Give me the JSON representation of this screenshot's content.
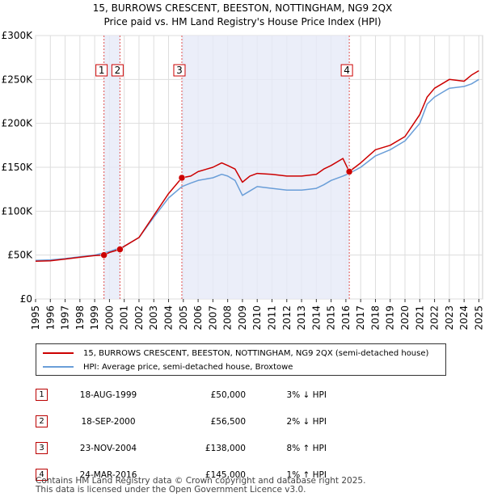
{
  "chart_data": {
    "type": "line",
    "title": "15, BURROWS CRESCENT, BEESTON, NOTTINGHAM, NG9 2QX",
    "subtitle": "Price paid vs. HM Land Registry's House Price Index (HPI)",
    "ylim": [
      0,
      300000
    ],
    "xlim": [
      1995,
      2025.25
    ],
    "y_ticks": [
      {
        "value": 0,
        "label": "£0"
      },
      {
        "value": 50000,
        "label": "£50K"
      },
      {
        "value": 100000,
        "label": "£100K"
      },
      {
        "value": 150000,
        "label": "£150K"
      },
      {
        "value": 200000,
        "label": "£200K"
      },
      {
        "value": 250000,
        "label": "£250K"
      },
      {
        "value": 300000,
        "label": "£300K"
      }
    ],
    "x_ticks": [
      "1995",
      "1996",
      "1997",
      "1998",
      "1999",
      "2000",
      "2001",
      "2002",
      "2003",
      "2004",
      "2005",
      "2006",
      "2007",
      "2008",
      "2009",
      "2010",
      "2011",
      "2012",
      "2013",
      "2014",
      "2015",
      "2016",
      "2017",
      "2018",
      "2019",
      "2020",
      "2021",
      "2022",
      "2023",
      "2024",
      "2025"
    ],
    "series": [
      {
        "name": "15, BURROWS CRESCENT, BEESTON, NOTTINGHAM, NG9 2QX (semi-detached house)",
        "color": "#cc0000",
        "points": [
          [
            1995,
            43000
          ],
          [
            1996,
            43500
          ],
          [
            1997,
            45500
          ],
          [
            1998,
            47500
          ],
          [
            1999,
            49500
          ],
          [
            1999.63,
            50000
          ],
          [
            2000,
            53000
          ],
          [
            2000.71,
            56500
          ],
          [
            2001,
            60000
          ],
          [
            2002,
            70000
          ],
          [
            2003,
            95000
          ],
          [
            2004,
            120000
          ],
          [
            2004.9,
            138000
          ],
          [
            2005.5,
            140000
          ],
          [
            2006,
            145000
          ],
          [
            2007,
            150000
          ],
          [
            2007.6,
            155000
          ],
          [
            2008,
            152000
          ],
          [
            2008.5,
            148000
          ],
          [
            2009,
            133000
          ],
          [
            2009.5,
            140000
          ],
          [
            2010,
            143000
          ],
          [
            2011,
            142000
          ],
          [
            2012,
            140000
          ],
          [
            2013,
            140000
          ],
          [
            2014,
            142000
          ],
          [
            2014.5,
            148000
          ],
          [
            2015,
            152000
          ],
          [
            2015.8,
            160000
          ],
          [
            2016.23,
            145000
          ],
          [
            2017,
            155000
          ],
          [
            2018,
            170000
          ],
          [
            2019,
            175000
          ],
          [
            2020,
            185000
          ],
          [
            2021,
            210000
          ],
          [
            2021.5,
            230000
          ],
          [
            2022,
            240000
          ],
          [
            2022.5,
            245000
          ],
          [
            2023,
            250000
          ],
          [
            2024,
            248000
          ],
          [
            2024.5,
            255000
          ],
          [
            2025,
            260000
          ]
        ]
      },
      {
        "name": "HPI: Average price, semi-detached house, Broxtowe",
        "color": "#6a9ed8",
        "points": [
          [
            1995,
            44000
          ],
          [
            1996,
            44500
          ],
          [
            1997,
            46000
          ],
          [
            1998,
            48000
          ],
          [
            1999,
            50000
          ],
          [
            2000,
            54000
          ],
          [
            2001,
            60000
          ],
          [
            2002,
            70000
          ],
          [
            2003,
            93000
          ],
          [
            2004,
            115000
          ],
          [
            2004.9,
            128000
          ],
          [
            2005.5,
            132000
          ],
          [
            2006,
            135000
          ],
          [
            2007,
            138000
          ],
          [
            2007.6,
            142000
          ],
          [
            2008,
            140000
          ],
          [
            2008.5,
            135000
          ],
          [
            2009,
            118000
          ],
          [
            2009.5,
            123000
          ],
          [
            2010,
            128000
          ],
          [
            2011,
            126000
          ],
          [
            2012,
            124000
          ],
          [
            2013,
            124000
          ],
          [
            2014,
            126000
          ],
          [
            2014.5,
            130000
          ],
          [
            2015,
            135000
          ],
          [
            2015.8,
            140000
          ],
          [
            2016.23,
            143000
          ],
          [
            2017,
            150000
          ],
          [
            2018,
            163000
          ],
          [
            2019,
            170000
          ],
          [
            2020,
            180000
          ],
          [
            2021,
            200000
          ],
          [
            2021.5,
            222000
          ],
          [
            2022,
            230000
          ],
          [
            2022.5,
            235000
          ],
          [
            2023,
            240000
          ],
          [
            2024,
            242000
          ],
          [
            2024.5,
            245000
          ],
          [
            2025,
            250000
          ]
        ]
      }
    ],
    "sales": [
      {
        "num": "1",
        "x": 1999.63,
        "price": 50000
      },
      {
        "num": "2",
        "x": 2000.71,
        "price": 56500
      },
      {
        "num": "3",
        "x": 2004.9,
        "price": 138000
      },
      {
        "num": "4",
        "x": 2016.23,
        "price": 145000
      }
    ]
  },
  "legend": {
    "property_label": "15, BURROWS CRESCENT, BEESTON, NOTTINGHAM, NG9 2QX (semi-detached house)",
    "hpi_label": "HPI: Average price, semi-detached house, Broxtowe",
    "property_color": "#cc0000",
    "hpi_color": "#6a9ed8"
  },
  "table": [
    {
      "num": "1",
      "date": "18-AUG-1999",
      "price": "£50,000",
      "hpi": "3% ↓ HPI"
    },
    {
      "num": "2",
      "date": "18-SEP-2000",
      "price": "£56,500",
      "hpi": "2% ↓ HPI"
    },
    {
      "num": "3",
      "date": "23-NOV-2004",
      "price": "£138,000",
      "hpi": "8% ↑ HPI"
    },
    {
      "num": "4",
      "date": "24-MAR-2016",
      "price": "£145,000",
      "hpi": "1% ↑ HPI"
    }
  ],
  "footer": {
    "line1": "Contains HM Land Registry data © Crown copyright and database right 2025.",
    "line2": "This data is licensed under the Open Government Licence v3.0."
  }
}
